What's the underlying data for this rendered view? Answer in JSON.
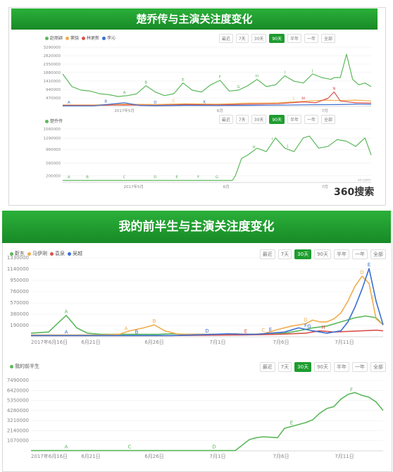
{
  "panel1": {
    "banner_title": "楚乔传与主演关注度变化",
    "logo_text": "360搜索",
    "logo_small": "sn.com"
  },
  "panel2": {
    "banner_title": "我的前半生与主演关注度变化"
  },
  "colors": {
    "banner_green": "#1e9c2f",
    "line_green": "#5cb85c",
    "orange": "#f0ad4e",
    "red": "#d9534f",
    "blue": "#3b6fd1",
    "tab_active": "#1e9c2f"
  },
  "chart_data": [
    {
      "type": "line",
      "title": "",
      "legend": [
        "赵丽颖",
        "窦骁",
        "林更新",
        "李沁"
      ],
      "tabs": [
        "最近",
        "7天",
        "30天",
        "90天",
        "半年",
        "一年",
        "全部"
      ],
      "active_tab": "90天",
      "yticks": [
        470000,
        940000,
        1410000,
        1880000,
        2350000,
        2820000,
        3290000
      ],
      "ylim": [
        0,
        3290000
      ],
      "xlim": [
        0,
        100
      ],
      "xtick_labels": [
        {
          "x": 20,
          "label": "2017年5月"
        },
        {
          "x": 51,
          "label": "6月"
        },
        {
          "x": 85,
          "label": "7月"
        }
      ],
      "series": [
        {
          "name": "赵丽颖",
          "color": "#5cb85c",
          "x": [
            0,
            3,
            6,
            9,
            12,
            15,
            18,
            21,
            24,
            27,
            30,
            33,
            36,
            39,
            42,
            45,
            48,
            51,
            54,
            57,
            60,
            63,
            66,
            69,
            72,
            75,
            78,
            81,
            84,
            87,
            88,
            90,
            92,
            94,
            96,
            98,
            100
          ],
          "y": [
            1800000,
            1100000,
            900000,
            850000,
            700000,
            650000,
            550000,
            600000,
            700000,
            1150000,
            800000,
            600000,
            700000,
            1300000,
            900000,
            800000,
            1200000,
            1450000,
            850000,
            900000,
            1150000,
            1500000,
            1100000,
            1200000,
            1700000,
            1400000,
            1300000,
            1800000,
            1600000,
            1500000,
            1600000,
            1600000,
            2900000,
            1500000,
            1200000,
            1300000,
            1100000
          ],
          "markers": [
            {
              "x": 20,
              "label": "A"
            },
            {
              "x": 27,
              "label": "B"
            },
            {
              "x": 39,
              "label": "E"
            },
            {
              "x": 51,
              "label": "F"
            },
            {
              "x": 57,
              "label": "G"
            },
            {
              "x": 63,
              "label": "H"
            },
            {
              "x": 72,
              "label": "I"
            },
            {
              "x": 81,
              "label": "J"
            }
          ]
        },
        {
          "name": "窦骁",
          "color": "#f0ad4e",
          "x": [
            0,
            10,
            20,
            30,
            40,
            50,
            60,
            70,
            75,
            80,
            85,
            90,
            95,
            100
          ],
          "y": [
            80000,
            80000,
            120000,
            100000,
            150000,
            120000,
            180000,
            200000,
            250000,
            300000,
            350000,
            320000,
            350000,
            300000
          ],
          "markers": [
            {
              "x": 36,
              "label": "C"
            },
            {
              "x": 75,
              "label": "L"
            }
          ]
        },
        {
          "name": "林更新",
          "color": "#d9534f",
          "x": [
            0,
            10,
            20,
            30,
            40,
            50,
            60,
            70,
            78,
            82,
            86,
            88,
            90,
            95,
            100
          ],
          "y": [
            60000,
            50000,
            80000,
            60000,
            100000,
            80000,
            120000,
            150000,
            250000,
            200000,
            450000,
            800000,
            300000,
            200000,
            180000
          ],
          "markers": [
            {
              "x": 78,
              "label": "M"
            },
            {
              "x": 88,
              "label": "N"
            }
          ]
        },
        {
          "name": "李沁",
          "color": "#3b6fd1",
          "x": [
            0,
            10,
            20,
            25,
            30,
            40,
            50,
            60,
            70,
            80,
            90,
            95,
            100
          ],
          "y": [
            30000,
            30000,
            200000,
            50000,
            40000,
            60000,
            50000,
            60000,
            70000,
            90000,
            100000,
            120000,
            110000
          ],
          "markers": [
            {
              "x": 2,
              "label": "A"
            },
            {
              "x": 14,
              "label": "B"
            },
            {
              "x": 30,
              "label": "D"
            },
            {
              "x": 46,
              "label": "K"
            }
          ]
        }
      ]
    },
    {
      "type": "line",
      "title": "",
      "legend": [
        "楚乔传"
      ],
      "tabs": [
        "最近",
        "7天",
        "30天",
        "90天",
        "半年",
        "一年",
        "全部"
      ],
      "active_tab": "90天",
      "yticks": [
        200000,
        560000,
        960000,
        1290000,
        1560000
      ],
      "ylim": [
        0,
        1560000
      ],
      "xlim": [
        0,
        100
      ],
      "xtick_labels": [
        {
          "x": 23,
          "label": "2017年5月"
        },
        {
          "x": 53,
          "label": "6月"
        },
        {
          "x": 85,
          "label": "7月"
        }
      ],
      "series": [
        {
          "name": "楚乔传",
          "color": "#5cb85c",
          "x": [
            0,
            10,
            20,
            30,
            40,
            48,
            55,
            56,
            58,
            60,
            63,
            66,
            69,
            72,
            75,
            78,
            80,
            83,
            86,
            89,
            92,
            95,
            98,
            100
          ],
          "y": [
            60000,
            60000,
            60000,
            60000,
            60000,
            60000,
            60000,
            200000,
            700000,
            800000,
            1000000,
            900000,
            1300000,
            1000000,
            900000,
            1300000,
            1350000,
            1000000,
            1050000,
            1250000,
            1200000,
            1050000,
            1300000,
            800000
          ],
          "markers": [
            {
              "x": 2,
              "label": "A"
            },
            {
              "x": 8,
              "label": "B"
            },
            {
              "x": 20,
              "label": "C"
            },
            {
              "x": 30,
              "label": "D"
            },
            {
              "x": 37,
              "label": "E"
            },
            {
              "x": 44,
              "label": "F"
            },
            {
              "x": 50,
              "label": "G"
            },
            {
              "x": 62,
              "label": "H"
            },
            {
              "x": 68,
              "label": "I"
            },
            {
              "x": 73,
              "label": "J"
            }
          ]
        }
      ]
    },
    {
      "type": "line",
      "title": "",
      "legend": [
        "靳东",
        "马伊琍",
        "袁泉",
        "吴越"
      ],
      "tabs": [
        "最近",
        "7天",
        "30天",
        "90天",
        "半年",
        "一年",
        "全部"
      ],
      "active_tab": "30天",
      "yticks": [
        190000,
        380000,
        570000,
        760000,
        950000,
        1140000,
        1330000
      ],
      "ylim": [
        0,
        1330000
      ],
      "xlim": [
        0,
        100
      ],
      "xtick_labels": [
        {
          "x": 0,
          "label": "2017年6月16日"
        },
        {
          "x": 17,
          "label": "6月21日"
        },
        {
          "x": 35,
          "label": "6月26日"
        },
        {
          "x": 53,
          "label": "7月1日"
        },
        {
          "x": 71,
          "label": "7月6日"
        },
        {
          "x": 89,
          "label": "7月11日"
        }
      ],
      "series": [
        {
          "name": "靳东",
          "color": "#5cb85c",
          "x": [
            0,
            5,
            8,
            10,
            13,
            16,
            20,
            24,
            28,
            32,
            36,
            40,
            44,
            48,
            52,
            56,
            60,
            64,
            68,
            72,
            76,
            80,
            84,
            88,
            92,
            95,
            98,
            100
          ],
          "y": [
            60000,
            80000,
            250000,
            360000,
            150000,
            60000,
            40000,
            40000,
            40000,
            40000,
            40000,
            50000,
            40000,
            40000,
            40000,
            40000,
            40000,
            40000,
            40000,
            60000,
            100000,
            150000,
            180000,
            250000,
            320000,
            350000,
            320000,
            200000
          ],
          "markers": [
            {
              "x": 10,
              "label": "A"
            }
          ]
        },
        {
          "name": "马伊琍",
          "color": "#f0ad4e",
          "x": [
            0,
            10,
            20,
            25,
            28,
            32,
            35,
            38,
            42,
            46,
            50,
            54,
            58,
            62,
            66,
            70,
            74,
            78,
            80,
            82,
            84,
            86,
            88,
            90,
            92,
            94,
            96,
            98,
            100
          ],
          "y": [
            30000,
            30000,
            30000,
            40000,
            100000,
            150000,
            200000,
            100000,
            40000,
            40000,
            40000,
            40000,
            50000,
            40000,
            50000,
            120000,
            180000,
            220000,
            280000,
            250000,
            250000,
            300000,
            400000,
            600000,
            850000,
            1020000,
            900000,
            300000,
            200000
          ],
          "markers": [
            {
              "x": 27,
              "label": "A"
            },
            {
              "x": 35,
              "label": "B"
            },
            {
              "x": 66,
              "label": "C"
            },
            {
              "x": 78,
              "label": "D"
            },
            {
              "x": 94,
              "label": "D"
            },
            {
              "x": 97,
              "label": "E"
            }
          ]
        },
        {
          "name": "袁泉",
          "color": "#d9534f",
          "x": [
            0,
            20,
            40,
            60,
            70,
            78,
            82,
            86,
            90,
            94,
            98,
            100
          ],
          "y": [
            20000,
            20000,
            20000,
            30000,
            40000,
            60000,
            100000,
            80000,
            90000,
            100000,
            110000,
            100000
          ],
          "markers": [
            {
              "x": 61,
              "label": "E"
            },
            {
              "x": 83,
              "label": "H"
            }
          ]
        },
        {
          "name": "吴越",
          "color": "#3b6fd1",
          "x": [
            0,
            20,
            40,
            52,
            56,
            60,
            64,
            68,
            72,
            76,
            80,
            84,
            86,
            88,
            90,
            92,
            94,
            96,
            98,
            100
          ],
          "y": [
            20000,
            20000,
            20000,
            40000,
            50000,
            40000,
            40000,
            60000,
            80000,
            150000,
            100000,
            60000,
            80000,
            100000,
            250000,
            500000,
            800000,
            1150000,
            600000,
            200000
          ],
          "markers": [
            {
              "x": 10,
              "label": "A"
            },
            {
              "x": 30,
              "label": "B"
            },
            {
              "x": 50,
              "label": "D"
            },
            {
              "x": 68,
              "label": "E"
            },
            {
              "x": 78,
              "label": "F"
            },
            {
              "x": 79,
              "label": "G"
            },
            {
              "x": 96,
              "label": "E"
            }
          ]
        }
      ]
    },
    {
      "type": "line",
      "title": "",
      "legend": [
        "我的前半生"
      ],
      "tabs": [
        "最近",
        "7天",
        "30天",
        "90天",
        "半年",
        "一年",
        "全部"
      ],
      "active_tab": "30天",
      "yticks": [
        1070000,
        2140000,
        3210000,
        4280000,
        5350000,
        6420000,
        7490000
      ],
      "ylim": [
        0,
        7490000
      ],
      "xlim": [
        0,
        100
      ],
      "xtick_labels": [
        {
          "x": 0,
          "label": "2017年6月16日"
        },
        {
          "x": 17,
          "label": "6月21日"
        },
        {
          "x": 35,
          "label": "6月26日"
        },
        {
          "x": 53,
          "label": "7月1日"
        },
        {
          "x": 71,
          "label": "7月6日"
        },
        {
          "x": 89,
          "label": "7月11日"
        }
      ],
      "series": [
        {
          "name": "我的前半生",
          "color": "#5cb85c",
          "x": [
            0,
            10,
            20,
            30,
            40,
            50,
            58,
            62,
            64,
            66,
            70,
            72,
            74,
            76,
            78,
            80,
            82,
            84,
            86,
            88,
            90,
            92,
            94,
            96,
            98,
            100
          ],
          "y": [
            30000,
            30000,
            30000,
            30000,
            30000,
            30000,
            30000,
            1200000,
            1400000,
            1500000,
            1400000,
            2400000,
            2600000,
            2800000,
            3000000,
            3300000,
            4000000,
            4500000,
            4700000,
            5500000,
            6000000,
            6200000,
            5900000,
            5700000,
            5200000,
            4300000
          ],
          "markers": [
            {
              "x": 10,
              "label": "A"
            },
            {
              "x": 28,
              "label": "C"
            },
            {
              "x": 52,
              "label": "D"
            },
            {
              "x": 74,
              "label": "E"
            },
            {
              "x": 91,
              "label": "F"
            }
          ]
        }
      ]
    }
  ]
}
